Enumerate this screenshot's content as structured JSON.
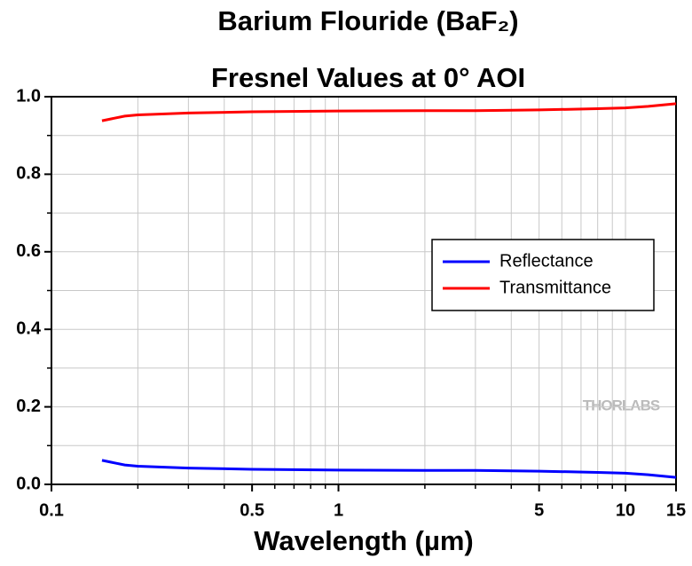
{
  "chart_data": {
    "type": "line",
    "title": "Barium Flouride (BaF₂)",
    "subtitle": "Fresnel Values at 0° AOI",
    "xlabel": "Wavelength (µm)",
    "annotation": "THORLABS",
    "x": [
      0.15,
      0.18,
      0.2,
      0.3,
      0.5,
      1,
      2,
      3,
      5,
      8,
      10,
      12,
      15
    ],
    "series": [
      {
        "name": "Reflectance",
        "color": "#0000ff",
        "values": [
          0.062,
          0.05,
          0.047,
          0.042,
          0.039,
          0.037,
          0.036,
          0.036,
          0.034,
          0.031,
          0.029,
          0.025,
          0.018
        ]
      },
      {
        "name": "Transmittance",
        "color": "#ff0000",
        "values": [
          0.938,
          0.95,
          0.953,
          0.958,
          0.961,
          0.963,
          0.964,
          0.964,
          0.966,
          0.969,
          0.971,
          0.975,
          0.982
        ]
      }
    ],
    "xscale": "log",
    "xlim": [
      0.1,
      15
    ],
    "xticks": [
      0.1,
      0.5,
      1,
      5,
      10,
      15
    ],
    "x_minor_ticks": [
      0.2,
      0.3,
      0.4,
      0.6,
      0.7,
      0.8,
      0.9,
      2,
      3,
      4,
      6,
      7,
      8,
      9
    ],
    "ylim": [
      0,
      1
    ],
    "yticks": [
      {
        "value": 0,
        "label": "0.0"
      },
      0.2,
      0.4,
      0.6,
      0.8,
      {
        "value": 1,
        "label": "1.0"
      }
    ],
    "y_minor_ticks": [
      0.1,
      0.3,
      0.5,
      0.7,
      0.9
    ],
    "grid": true,
    "legend": "right"
  }
}
